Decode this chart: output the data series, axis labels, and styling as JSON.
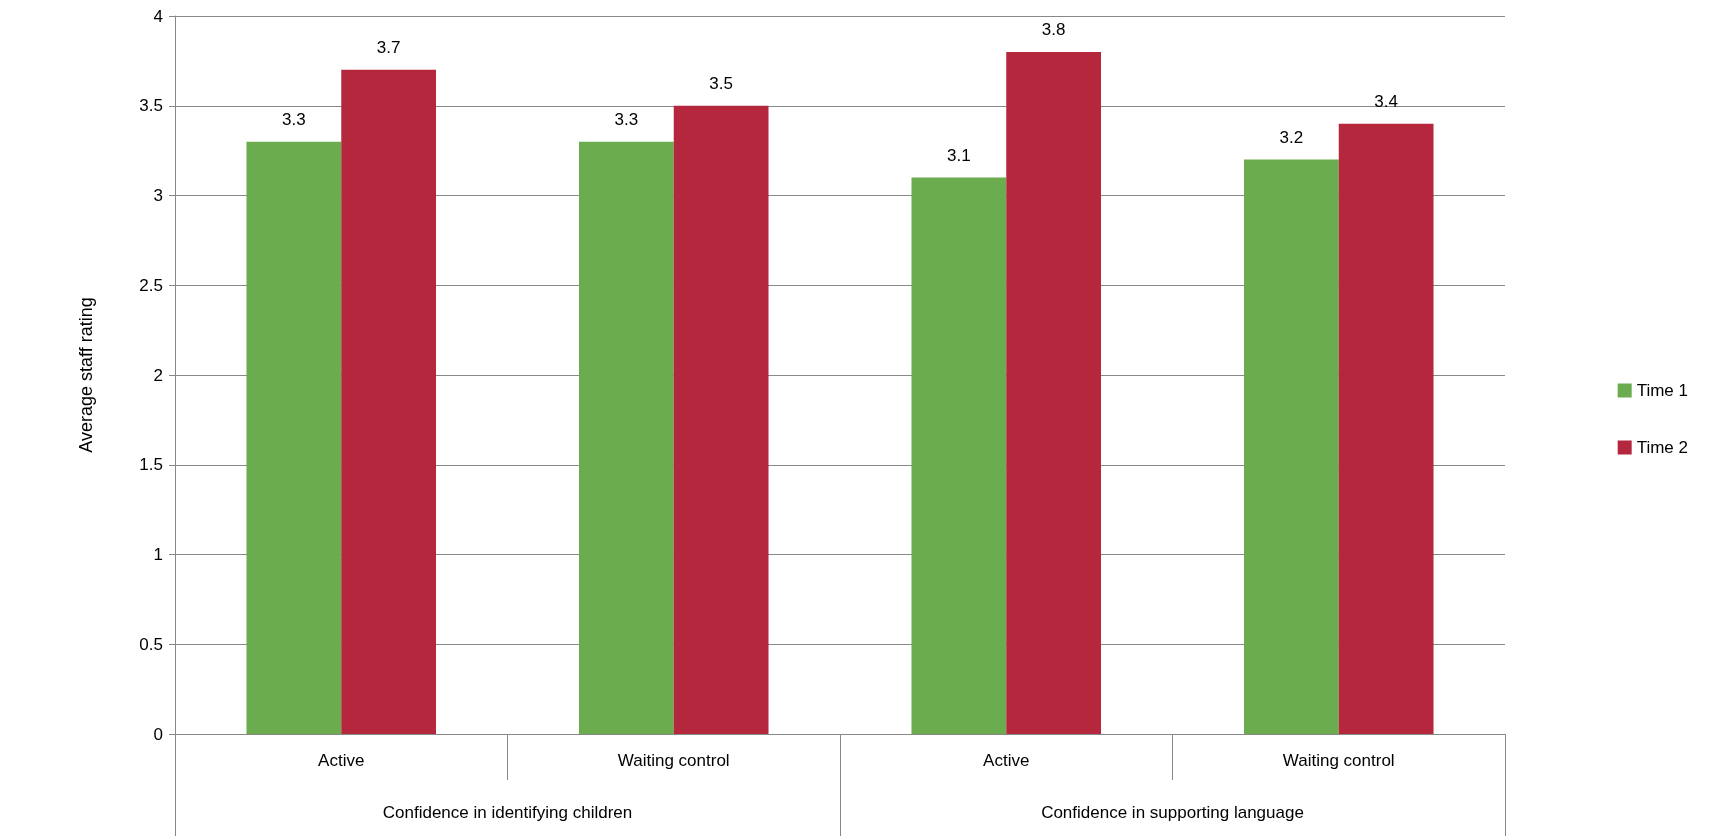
{
  "chart_data": {
    "type": "bar",
    "ylabel": "Average staff rating",
    "categories": [
      "Active",
      "Waiting control",
      "Active",
      "Waiting control"
    ],
    "annotations": [
      "Confidence in identifying children",
      "Confidence in supporting language"
    ],
    "series": [
      {
        "name": "Time 1",
        "color": "#6aac4e",
        "values": [
          3.3,
          3.3,
          3.1,
          3.2
        ]
      },
      {
        "name": "Time 2",
        "color": "#b5273d",
        "values": [
          3.7,
          3.5,
          3.8,
          3.4
        ]
      }
    ],
    "ylim": [
      0,
      4
    ],
    "yticks": [
      0,
      0.5,
      1,
      1.5,
      2,
      2.5,
      3,
      3.5,
      4
    ],
    "grid": "y",
    "legend": "right",
    "data_labels": true
  }
}
